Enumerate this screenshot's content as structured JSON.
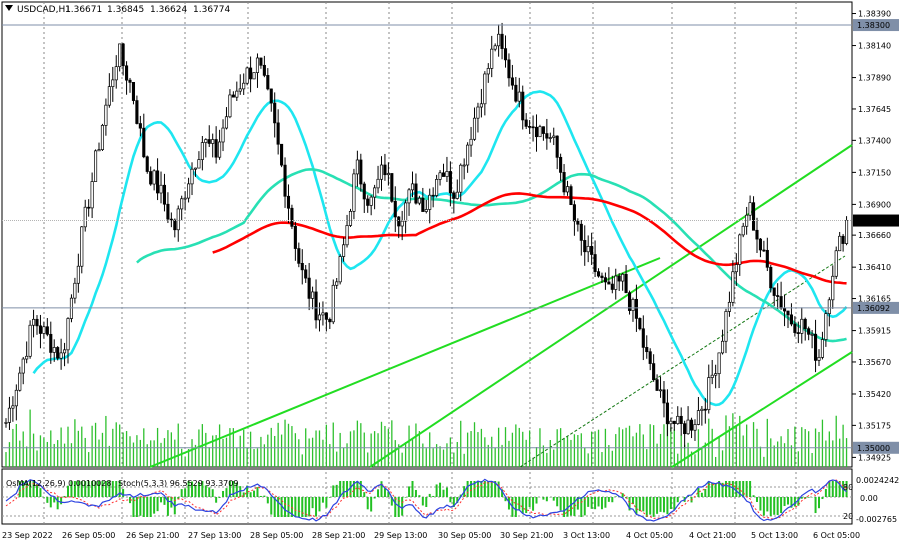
{
  "chart_data": {
    "type": "candlestick",
    "header": "USDCAD,H1",
    "ohlc": [
      "1.36671",
      "1.36845",
      "1.36624",
      "1.36774"
    ],
    "price_axis": [
      "1.38390",
      "1.38140",
      "1.37890",
      "1.37645",
      "1.37400",
      "1.37150",
      "1.36900",
      "1.36660",
      "1.36410",
      "1.36165",
      "1.35915",
      "1.35670",
      "1.35420",
      "1.35175",
      "1.34925"
    ],
    "ylim": [
      1.3485,
      1.3848
    ],
    "price_tags": {
      "resistance": "1.38300",
      "current": "1.36774",
      "support_mid": "1.36092",
      "support_low": "1.35000"
    },
    "time_axis": [
      "23 Sep 2022",
      "26 Sep 05:00",
      "26 Sep 21:00",
      "27 Sep 13:00",
      "28 Sep 05:00",
      "28 Sep 21:00",
      "29 Sep 13:00",
      "30 Sep 05:00",
      "30 Sep 21:00",
      "3 Oct 13:00",
      "4 Oct 05:00",
      "4 Oct 21:00",
      "5 Oct 13:00",
      "6 Oct 05:00"
    ],
    "closes": [
      1.352,
      1.356,
      1.36,
      1.3585,
      1.357,
      1.364,
      1.37,
      1.376,
      1.381,
      1.378,
      1.372,
      1.37,
      1.367,
      1.371,
      1.374,
      1.373,
      1.377,
      1.379,
      1.38,
      1.376,
      1.37,
      1.364,
      1.361,
      1.36,
      1.365,
      1.372,
      1.369,
      1.372,
      1.368,
      1.37,
      1.369,
      1.372,
      1.37,
      1.374,
      1.378,
      1.382,
      1.379,
      1.376,
      1.375,
      1.374,
      1.37,
      1.366,
      1.364,
      1.362,
      1.363,
      1.36,
      1.356,
      1.353,
      1.3515,
      1.352,
      1.354,
      1.358,
      1.364,
      1.369,
      1.365,
      1.362,
      1.36,
      1.3595,
      1.357,
      1.364,
      1.3677
    ],
    "moving_averages": [
      {
        "color": "#1ee6f0"
      },
      {
        "color": "#28e0b4"
      },
      {
        "color": "#ff0000"
      }
    ],
    "indicator": {
      "osma_label": "OsMA(12,26,9) 0.0010028",
      "stoch_label": "Stoch(5,3,3) 96.5529 93.3709",
      "axis": [
        "0.0024242",
        "0.00",
        "-0.002765"
      ],
      "levels": [
        "80",
        "20"
      ]
    }
  }
}
